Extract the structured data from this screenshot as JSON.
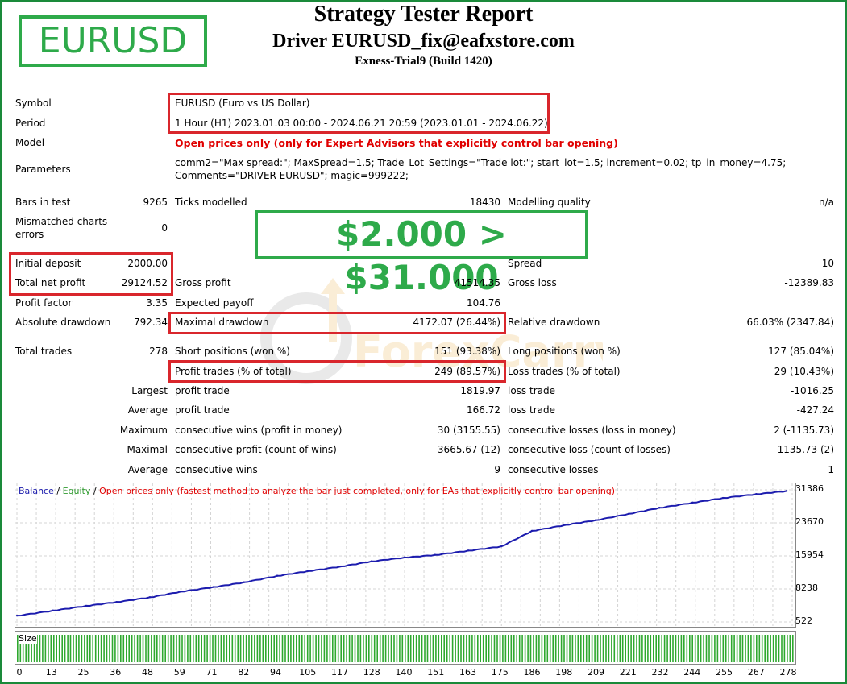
{
  "header": {
    "logo": "EURUSD",
    "title": "Strategy Tester Report",
    "subtitle": "Driver EURUSD_fix@eafxstore.com",
    "server": "Exness-Trial9 (Build 1420)"
  },
  "promo": "$2.000 > $31.000",
  "watermark": "ForexCarry",
  "info": {
    "symbol_label": "Symbol",
    "symbol": "EURUSD (Euro vs US Dollar)",
    "period_label": "Period",
    "period": "1 Hour (H1) 2023.01.03 00:00 - 2024.06.21 20:59 (2023.01.01 - 2024.06.22)",
    "model_label": "Model",
    "model": "Open prices only (only for Expert Advisors that explicitly control bar opening)",
    "params_label": "Parameters",
    "params_line1": "comm2=\"Max spread:\"; MaxSpread=1.5; Trade_Lot_Settings=\"Trade lot:\"; start_lot=1.5; increment=0.02; tp_in_money=4.75;",
    "params_line2": "Comments=\"DRIVER EURUSD\"; magic=999222;"
  },
  "stats": {
    "bars_label": "Bars in test",
    "bars": "9265",
    "ticks_label": "Ticks modelled",
    "ticks": "18430",
    "quality_label": "Modelling quality",
    "quality": "n/a",
    "mismatch_label1": "Mismatched charts",
    "mismatch_label2": "errors",
    "mismatch": "0",
    "deposit_label": "Initial deposit",
    "deposit": "2000.00",
    "spread_label": "Spread",
    "spread": "10",
    "net_label": "Total net profit",
    "net": "29124.52",
    "gross_profit_label": "Gross profit",
    "gross_profit": "41514.35",
    "gross_loss_label": "Gross loss",
    "gross_loss": "-12389.83",
    "pf_label": "Profit factor",
    "pf": "3.35",
    "payoff_label": "Expected payoff",
    "payoff": "104.76",
    "abs_dd_label": "Absolute drawdown",
    "abs_dd": "792.34",
    "max_dd_label": "Maximal drawdown",
    "max_dd": "4172.07 (26.44%)",
    "rel_dd_label": "Relative drawdown",
    "rel_dd": "66.03% (2347.84)",
    "trades_label": "Total trades",
    "trades": "278",
    "short_label": "Short positions (won %)",
    "short": "151 (93.38%)",
    "long_label": "Long positions (won %)",
    "long": "127 (85.04%)",
    "profit_trades_label": "Profit trades (% of total)",
    "profit_trades": "249 (89.57%)",
    "loss_trades_label": "Loss trades (% of total)",
    "loss_trades": "29 (10.43%)",
    "largest": "Largest",
    "largest_profit_label": "profit trade",
    "largest_profit": "1819.97",
    "largest_loss_label": "loss trade",
    "largest_loss": "-1016.25",
    "average": "Average",
    "avg_profit_label": "profit trade",
    "avg_profit": "166.72",
    "avg_loss_label": "loss trade",
    "avg_loss": "-427.24",
    "maximum": "Maximum",
    "max_wins_label": "consecutive wins (profit in money)",
    "max_wins": "30 (3155.55)",
    "max_losses_label": "consecutive losses (loss in money)",
    "max_losses": "2 (-1135.73)",
    "maximal": "Maximal",
    "maximal_profit_label": "consecutive profit (count of wins)",
    "maximal_profit": "3665.67 (12)",
    "maximal_loss_label": "consecutive loss (count of losses)",
    "maximal_loss": "-1135.73 (2)",
    "average2": "Average",
    "avg_wins_label": "consecutive wins",
    "avg_wins": "9",
    "avg_losses_label": "consecutive losses",
    "avg_losses": "1"
  },
  "legend": {
    "balance": "Balance",
    "sep1": " / ",
    "equity": "Equity",
    "sep2": " / ",
    "note": "Open prices only (fastest method to analyze the bar just completed, only for EAs that explicitly control bar opening)"
  },
  "size_label": "Size",
  "colors": {
    "balance": "#1c1cae",
    "equity": "#2e9a2e",
    "note": "#e00000",
    "volume": "#2ea82e",
    "highlight": "#d9262c",
    "brand": "#2eaa4a"
  },
  "chart_data": {
    "type": "line",
    "x": [
      0,
      13,
      25,
      36,
      48,
      59,
      71,
      82,
      94,
      105,
      117,
      128,
      140,
      151,
      163,
      175,
      186,
      198,
      209,
      221,
      232,
      244,
      255,
      267,
      278
    ],
    "series": [
      {
        "name": "Balance",
        "values": [
          2000,
          3200,
          4300,
          5200,
          6300,
          7600,
          8700,
          9800,
          11300,
          12400,
          13500,
          14700,
          15600,
          16200,
          17200,
          18200,
          21800,
          23200,
          24300,
          25800,
          27200,
          28400,
          29500,
          30400,
          31126
        ]
      }
    ],
    "yticks": [
      522,
      8238,
      15954,
      23670,
      31386
    ],
    "xticks": [
      "0",
      "13",
      "25",
      "36",
      "48",
      "59",
      "71",
      "82",
      "94",
      "105",
      "117",
      "128",
      "140",
      "151",
      "163",
      "175",
      "186",
      "198",
      "209",
      "221",
      "232",
      "244",
      "255",
      "267",
      "278"
    ],
    "ylim": [
      522,
      31386
    ],
    "xlim": [
      0,
      280
    ],
    "grid": true,
    "legend": "top-left"
  }
}
